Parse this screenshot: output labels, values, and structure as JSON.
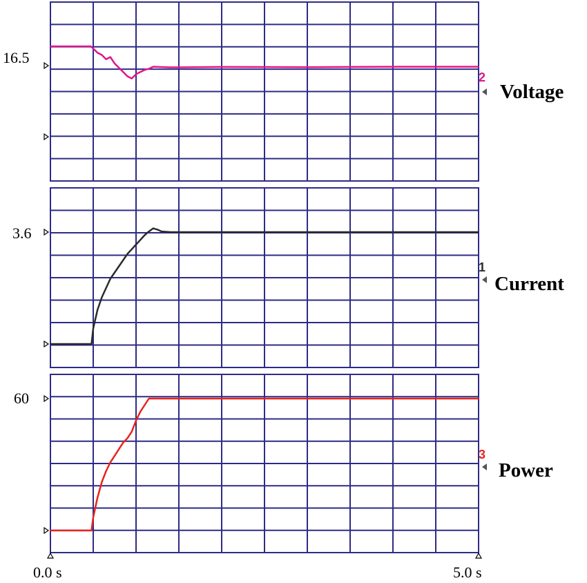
{
  "colors": {
    "grid": "#2e2a86",
    "voltage": "#e0158a",
    "current": "#2a2a2a",
    "power": "#e8241c",
    "marker": "#555555"
  },
  "chart_data": [
    {
      "type": "line",
      "name": "Voltage",
      "channel_label": "2",
      "reference_label": "16.5",
      "reference_value": 16.5,
      "x_unit": "s",
      "xlim": [
        0,
        5
      ],
      "grid": true,
      "series": [
        {
          "name": "Voltage",
          "x": [
            0.0,
            0.47,
            0.5,
            0.55,
            0.6,
            0.65,
            0.7,
            0.75,
            0.8,
            0.85,
            0.9,
            0.95,
            1.0,
            1.05,
            1.1,
            1.15,
            1.2,
            1.4,
            2.0,
            3.0,
            4.0,
            5.0
          ],
          "y": [
            17.4,
            17.4,
            17.3,
            17.1,
            17.0,
            16.8,
            16.9,
            16.6,
            16.4,
            16.2,
            16.0,
            15.9,
            16.1,
            16.2,
            16.3,
            16.35,
            16.45,
            16.42,
            16.44,
            16.43,
            16.45,
            16.45
          ]
        }
      ]
    },
    {
      "type": "line",
      "name": "Current",
      "channel_label": "1",
      "reference_label": "3.6",
      "reference_value": 3.6,
      "x_unit": "s",
      "xlim": [
        0,
        5
      ],
      "grid": true,
      "series": [
        {
          "name": "Current",
          "x": [
            0.0,
            0.48,
            0.5,
            0.55,
            0.6,
            0.65,
            0.7,
            0.75,
            0.8,
            0.85,
            0.9,
            0.95,
            1.0,
            1.05,
            1.1,
            1.15,
            1.2,
            1.25,
            1.3,
            1.4,
            1.6,
            2.0,
            3.0,
            4.0,
            5.0
          ],
          "y": [
            0.0,
            0.0,
            0.5,
            1.1,
            1.5,
            1.8,
            2.1,
            2.3,
            2.5,
            2.7,
            2.9,
            3.05,
            3.2,
            3.35,
            3.5,
            3.62,
            3.72,
            3.68,
            3.62,
            3.6,
            3.6,
            3.6,
            3.6,
            3.6,
            3.6
          ]
        }
      ]
    },
    {
      "type": "line",
      "name": "Power",
      "channel_label": "3",
      "reference_label": "60",
      "reference_value": 60,
      "x_unit": "s",
      "xlim": [
        0,
        5
      ],
      "grid": true,
      "series": [
        {
          "name": "Power",
          "x": [
            0.0,
            0.48,
            0.5,
            0.55,
            0.6,
            0.65,
            0.7,
            0.75,
            0.8,
            0.85,
            0.9,
            0.95,
            1.0,
            1.05,
            1.1,
            1.15,
            1.2,
            1.4,
            2.0,
            3.0,
            4.0,
            5.0
          ],
          "y": [
            0.0,
            0.0,
            6.0,
            15.0,
            22.0,
            27.0,
            31.0,
            34.0,
            37.0,
            40.0,
            42.0,
            45.0,
            50.0,
            54.0,
            57.0,
            60.0,
            60.0,
            60.0,
            60.0,
            60.0,
            60.0,
            60.0
          ]
        }
      ]
    }
  ],
  "time_axis": {
    "start_label": "0.0 s",
    "end_label": "5.0 s"
  }
}
